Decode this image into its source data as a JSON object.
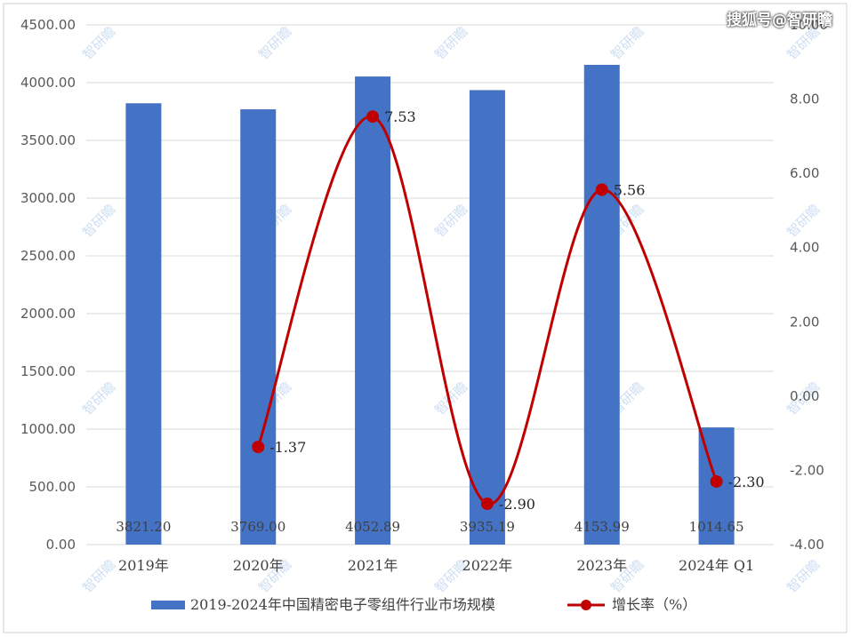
{
  "watermark": {
    "header": "搜狐号@智研瞻",
    "tile": "智研瞻"
  },
  "colors": {
    "bar": "#4472C4",
    "line": "#C00000",
    "marker": "#C00000",
    "grid": "#D9D9D9"
  },
  "chart_data": {
    "type": "bar",
    "categories": [
      "2019年",
      "2020年",
      "2021年",
      "2022年",
      "2023年",
      "2024年 Q1"
    ],
    "series": [
      {
        "name": "2019-2024年中国精密电子零组件行业市场规模",
        "type": "bar",
        "axis": "left",
        "values": [
          3821.2,
          3769.0,
          4052.89,
          3935.19,
          4153.99,
          1014.65
        ],
        "labels": [
          "3821.20",
          "3769.00",
          "4052.89",
          "3935.19",
          "4153.99",
          "1014.65"
        ]
      },
      {
        "name": "增长率（%）",
        "type": "line",
        "axis": "right",
        "values": [
          null,
          -1.37,
          7.53,
          -2.9,
          5.56,
          -2.3
        ],
        "labels": [
          "",
          "-1.37",
          "7.53",
          "-2.90",
          "5.56",
          "-2.30"
        ]
      }
    ],
    "y_left": {
      "ylim": [
        0,
        4500
      ],
      "ticks": [
        "0.00",
        "500.00",
        "1000.00",
        "1500.00",
        "2000.00",
        "2500.00",
        "3000.00",
        "3500.00",
        "4000.00",
        "4500.00"
      ]
    },
    "y_right": {
      "ylim": [
        -4,
        10
      ],
      "ticks": [
        "-4.00",
        "-2.00",
        "0.00",
        "2.00",
        "4.00",
        "6.00",
        "8.00",
        "10.00"
      ]
    },
    "grid": true,
    "legend_position": "bottom"
  }
}
